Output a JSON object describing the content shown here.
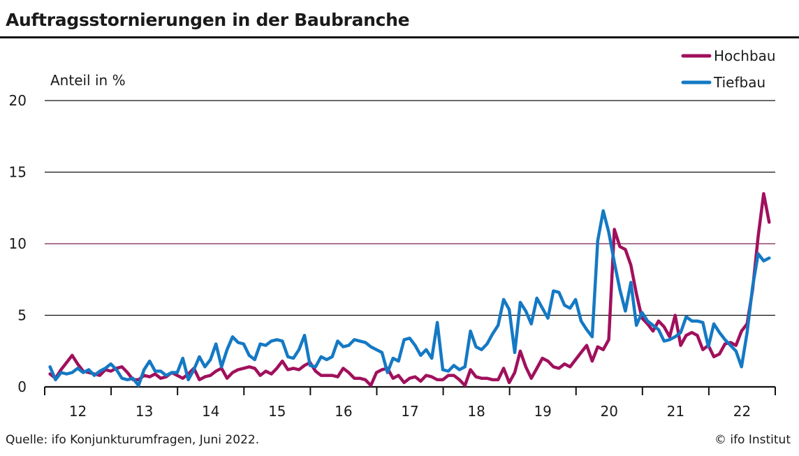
{
  "title": "Auftragsstornierungen in der Baubranche",
  "source": "Quelle: ifo Konjunkturumfragen, Juni 2022.",
  "copyright": "© ifo Institut",
  "chart_data": {
    "type": "line",
    "ylabel": "Anteil in %",
    "ylim": [
      0,
      20
    ],
    "yticks": [
      0,
      5,
      10,
      15,
      20
    ],
    "grid": true,
    "legend_position": "top-right",
    "x_start": 2011.58,
    "x_step": 0.0833,
    "xlim": [
      2011.5,
      2022.5
    ],
    "xticks": [
      "12",
      "13",
      "14",
      "15",
      "16",
      "17",
      "18",
      "19",
      "20",
      "21",
      "22"
    ],
    "colors": {
      "grid_inner": "#7a1f4e",
      "grid": "#111111"
    },
    "series": [
      {
        "name": "Hochbau",
        "color": "#a0105c",
        "values": [
          0.9,
          0.6,
          1.2,
          1.7,
          2.2,
          1.6,
          1.1,
          1.0,
          0.9,
          0.8,
          1.2,
          1.1,
          1.3,
          1.4,
          1.0,
          0.5,
          0.5,
          0.8,
          0.7,
          0.9,
          0.6,
          0.7,
          1.0,
          0.8,
          0.6,
          0.9,
          1.3,
          0.5,
          0.7,
          0.8,
          1.1,
          1.3,
          0.6,
          1.0,
          1.2,
          1.3,
          1.4,
          1.3,
          0.8,
          1.1,
          0.9,
          1.3,
          1.8,
          1.2,
          1.3,
          1.2,
          1.5,
          1.7,
          1.1,
          0.8,
          0.8,
          0.8,
          0.7,
          1.3,
          1.0,
          0.6,
          0.6,
          0.5,
          0.1,
          1.0,
          1.2,
          1.3,
          0.6,
          0.8,
          0.3,
          0.6,
          0.7,
          0.4,
          0.8,
          0.7,
          0.5,
          0.5,
          0.8,
          0.8,
          0.5,
          0.1,
          1.2,
          0.7,
          0.6,
          0.6,
          0.5,
          0.5,
          1.3,
          0.3,
          1.0,
          2.5,
          1.4,
          0.6,
          1.3,
          2.0,
          1.8,
          1.4,
          1.3,
          1.6,
          1.4,
          1.9,
          2.4,
          2.9,
          1.8,
          2.8,
          2.6,
          3.3,
          11.0,
          9.8,
          9.6,
          8.5,
          6.5,
          4.8,
          4.4,
          3.9,
          4.6,
          4.2,
          3.5,
          5.0,
          2.9,
          3.6,
          3.8,
          3.6,
          2.6,
          2.9,
          2.1,
          2.3,
          3.0,
          3.1,
          2.9,
          3.9,
          4.4,
          6.8,
          10.5,
          13.5,
          11.5
        ]
      },
      {
        "name": "Tiefbau",
        "color": "#1479c4",
        "values": [
          1.4,
          0.5,
          1.0,
          0.9,
          1.0,
          1.3,
          1.0,
          1.2,
          0.8,
          1.1,
          1.3,
          1.6,
          1.2,
          0.6,
          0.5,
          0.6,
          0.1,
          1.2,
          1.8,
          1.1,
          1.1,
          0.8,
          1.0,
          1.0,
          2.0,
          0.5,
          1.2,
          2.1,
          1.4,
          1.9,
          3.0,
          1.4,
          2.6,
          3.5,
          3.1,
          3.0,
          2.2,
          1.9,
          3.0,
          2.9,
          3.2,
          3.3,
          3.2,
          2.1,
          2.0,
          2.6,
          3.6,
          1.5,
          1.4,
          2.1,
          1.9,
          2.1,
          3.2,
          2.8,
          2.9,
          3.3,
          3.2,
          3.1,
          2.8,
          2.6,
          2.4,
          1.0,
          2.0,
          1.8,
          3.3,
          3.4,
          2.9,
          2.2,
          2.6,
          2.0,
          4.5,
          1.2,
          1.1,
          1.5,
          1.2,
          1.4,
          3.9,
          2.8,
          2.6,
          3.0,
          3.7,
          4.3,
          6.1,
          5.4,
          2.4,
          5.9,
          5.3,
          4.4,
          6.2,
          5.5,
          4.8,
          6.7,
          6.6,
          5.7,
          5.5,
          6.1,
          4.6,
          4.0,
          3.5,
          10.2,
          12.3,
          10.8,
          8.7,
          6.8,
          5.3,
          7.3,
          4.3,
          5.2,
          4.6,
          4.3,
          4.0,
          3.2,
          3.3,
          3.5,
          3.8,
          4.9,
          4.6,
          4.6,
          4.5,
          2.8,
          4.4,
          3.8,
          3.3,
          2.9,
          2.5,
          1.4,
          3.8,
          7.0,
          9.3,
          8.8,
          9.0
        ]
      }
    ]
  }
}
